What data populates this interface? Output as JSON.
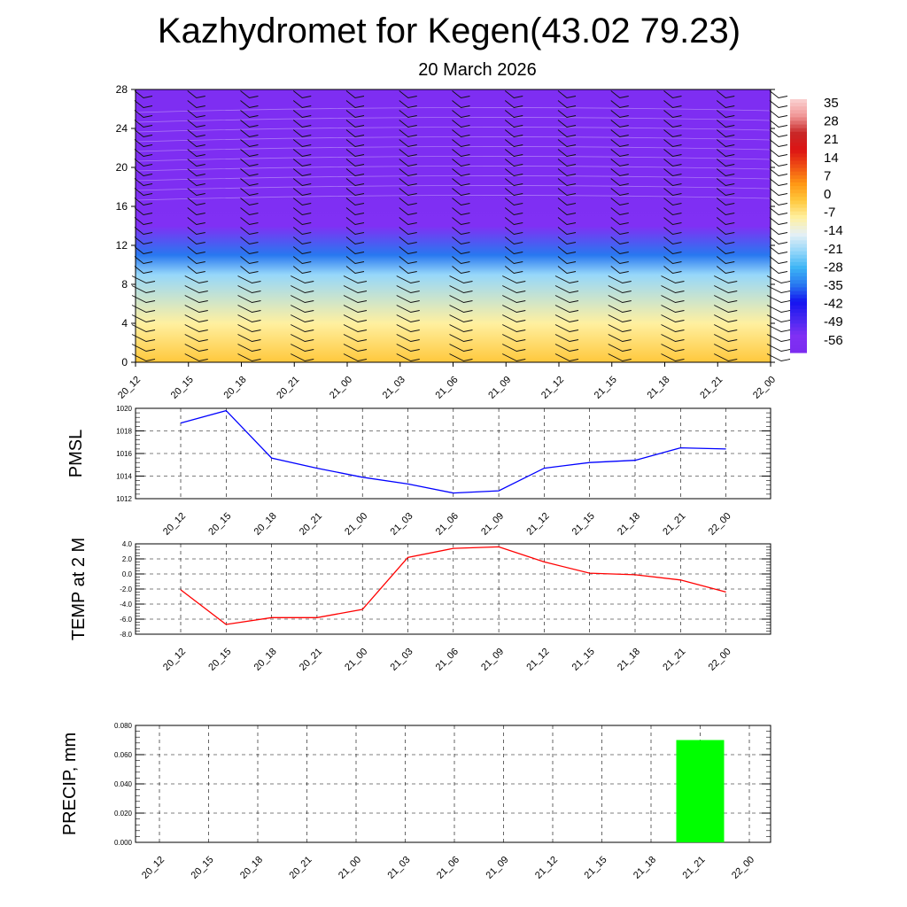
{
  "title": "Kazhydromet for Kegen(43.02 79.23)",
  "date": "20 March 2026",
  "time_labels": [
    "20_12",
    "20_15",
    "20_18",
    "20_21",
    "21_00",
    "21_03",
    "21_06",
    "21_09",
    "21_12",
    "21_15",
    "21_18",
    "21_21",
    "22_00"
  ],
  "colors": {
    "pmsl_line": "#0000ff",
    "temp_line": "#ff0000",
    "precip_bar": "#00ff00",
    "grid": "#000000"
  },
  "chart_data": [
    {
      "type": "heatmap",
      "name": "temperature cross-section with wind barbs",
      "x": [
        "20_12",
        "20_15",
        "20_18",
        "20_21",
        "21_00",
        "21_03",
        "21_06",
        "21_09",
        "21_12",
        "21_15",
        "21_18",
        "21_21",
        "22_00"
      ],
      "ylim": [
        0,
        28
      ],
      "yticks": [
        0,
        4,
        8,
        12,
        16,
        20,
        24,
        28
      ],
      "colorbar": {
        "labels": [
          "35",
          "28",
          "21",
          "14",
          "7",
          "0",
          "-7",
          "-14",
          "-21",
          "-28",
          "-35",
          "-42",
          "-49",
          "-56"
        ],
        "range": [
          -63,
          42
        ]
      },
      "bands": [
        {
          "level_from": 0,
          "level_to": 4,
          "value": 0
        },
        {
          "level_from": 4,
          "level_to": 9,
          "value": -7
        },
        {
          "level_from": 9,
          "level_to": 11,
          "value": -21
        },
        {
          "level_from": 11,
          "level_to": 14,
          "value": -35
        },
        {
          "level_from": 14,
          "level_to": 18,
          "value": -56
        },
        {
          "level_from": 18,
          "level_to": 28,
          "value": -60
        }
      ]
    },
    {
      "type": "line",
      "name": "PMSL",
      "ylabel": "PMSL",
      "ylim": [
        1012,
        1020
      ],
      "yticks": [
        1012,
        1014,
        1016,
        1018,
        1020
      ],
      "ytick_labels": [
        "1012",
        "1014",
        "1016",
        "1018",
        "1020"
      ],
      "x": [
        "20_12",
        "20_15",
        "20_18",
        "20_21",
        "21_00",
        "21_03",
        "21_06",
        "21_09",
        "21_12",
        "21_15",
        "21_18",
        "21_21",
        "22_00"
      ],
      "values": [
        1018.7,
        1019.8,
        1015.6,
        1014.7,
        1013.9,
        1013.3,
        1012.5,
        1012.7,
        1014.7,
        1015.2,
        1015.4,
        1016.5,
        1016.4
      ]
    },
    {
      "type": "line",
      "name": "TEMP at 2 M",
      "ylabel": "TEMP at 2 M",
      "ylim": [
        -8,
        4
      ],
      "yticks": [
        -8,
        -6,
        -4,
        -2,
        0,
        2,
        4
      ],
      "ytick_labels": [
        "-8.0",
        "-6.0",
        "-4.0",
        "-2.0",
        "0.0",
        "2.0",
        "4.0"
      ],
      "x": [
        "20_12",
        "20_15",
        "20_18",
        "20_21",
        "21_00",
        "21_03",
        "21_06",
        "21_09",
        "21_12",
        "21_15",
        "21_18",
        "21_21",
        "22_00"
      ],
      "values": [
        -2.1,
        -6.7,
        -5.8,
        -5.8,
        -4.7,
        2.2,
        3.4,
        3.6,
        1.6,
        0.1,
        -0.1,
        -0.8,
        -2.4
      ]
    },
    {
      "type": "bar",
      "name": "PRECIP, mm",
      "ylabel": "PRECIP, mm",
      "ylim": [
        0,
        0.08
      ],
      "yticks": [
        0,
        0.02,
        0.04,
        0.06,
        0.08
      ],
      "ytick_labels": [
        "0.000",
        "0.020",
        "0.040",
        "0.060",
        "0.080"
      ],
      "x": [
        "20_12",
        "20_15",
        "20_18",
        "20_21",
        "21_00",
        "21_03",
        "21_06",
        "21_09",
        "21_12",
        "21_15",
        "21_18",
        "21_21",
        "22_00"
      ],
      "values": [
        0,
        0,
        0,
        0,
        0,
        0,
        0,
        0,
        0,
        0,
        0,
        0.07,
        0
      ]
    }
  ]
}
